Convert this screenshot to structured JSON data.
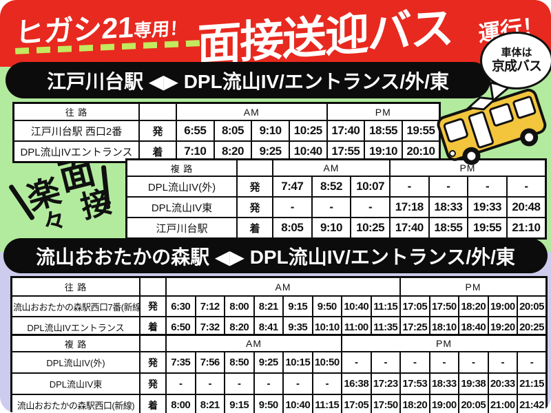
{
  "poster": {
    "header": {
      "kicker": "ヒガシ21",
      "kicker_small": "専用！",
      "title": "面接送迎バス",
      "suffix": "運行！",
      "bubble": {
        "line1": "車体は",
        "line2": "京成バス"
      }
    },
    "decoration": {
      "char1": "楽",
      "char2": "々",
      "char3": "面",
      "char4": "接"
    },
    "section1": {
      "title": "江戸川台駅 ◀▶ DPL流山IV/エントランス/外/東"
    },
    "section2": {
      "title": "流山おおたかの森駅 ◀▶ DPL流山IV/エントランス/外/東"
    }
  },
  "colors": {
    "header_red": "#e8291f",
    "dash_green": "#c3e95e",
    "band_green": "#b2eb9e",
    "band_lavender": "#cdccee",
    "cell_green": "#e6f5b2",
    "cell_tan": "#dcd5a2",
    "bar_black": "#0c0c0c",
    "bus_yellow": "#f2c53d"
  },
  "tables": [
    {
      "direction": "往 路",
      "am": "AM",
      "pm": "PM",
      "am_count": 4,
      "pm_count": 3,
      "rows": [
        {
          "stop": "江戸川台駅 西口2番",
          "mark": "発",
          "style": "green",
          "times": [
            "6:55",
            "8:05",
            "9:10",
            "10:25",
            "17:40",
            "18:55",
            "19:55"
          ]
        },
        {
          "stop": "DPL流山IVエントランス",
          "mark": "着",
          "style": "white",
          "times": [
            "7:10",
            "8:20",
            "9:25",
            "10:40",
            "17:55",
            "19:10",
            "20:10"
          ]
        }
      ]
    },
    {
      "direction": "複 路",
      "am": "AM",
      "pm": "PM",
      "am_count": 3,
      "pm_count": 4,
      "rows": [
        {
          "stop": "DPL流山IV(外)",
          "mark": "発",
          "style": "green",
          "times": [
            "7:47",
            "8:52",
            "10:07",
            "-",
            "-",
            "-",
            "-"
          ]
        },
        {
          "stop": "DPL流山IV東",
          "mark": "発",
          "style": "tan",
          "times": [
            "-",
            "-",
            "-",
            "17:18",
            "18:33",
            "19:33",
            "20:48"
          ]
        },
        {
          "stop": "江戸川台駅",
          "mark": "着",
          "style": "white",
          "times": [
            "8:05",
            "9:10",
            "10:25",
            "17:40",
            "18:55",
            "19:55",
            "21:10"
          ]
        }
      ]
    },
    {
      "direction": "往 路",
      "am": "AM",
      "pm": "PM",
      "am_count": 8,
      "pm_count": 5,
      "rows": [
        {
          "stop": "流山おおたかの森駅西口7番(新線)",
          "mark": "発",
          "style": "green",
          "times": [
            "6:30",
            "7:12",
            "8:00",
            "8:21",
            "9:15",
            "9:50",
            "10:40",
            "11:15",
            "17:05",
            "17:50",
            "18:20",
            "19:00",
            "20:05"
          ]
        },
        {
          "stop": "DPL流山IVエントランス",
          "mark": "着",
          "style": "white",
          "times": [
            "6:50",
            "7:32",
            "8:20",
            "8:41",
            "9:35",
            "10:10",
            "11:00",
            "11:35",
            "17:25",
            "18:10",
            "18:40",
            "19:20",
            "20:25"
          ]
        }
      ]
    },
    {
      "direction": "複 路",
      "am": "AM",
      "pm": "PM",
      "am_count": 6,
      "pm_count": 7,
      "rows": [
        {
          "stop": "DPL流山IV(外)",
          "mark": "発",
          "style": "green",
          "times": [
            "7:35",
            "7:56",
            "8:50",
            "9:25",
            "10:15",
            "10:50",
            "-",
            "-",
            "-",
            "-",
            "-",
            "-",
            "-"
          ]
        },
        {
          "stop": "DPL流山IV東",
          "mark": "発",
          "style": "tan",
          "times": [
            "-",
            "-",
            "-",
            "-",
            "-",
            "-",
            "16:38",
            "17:23",
            "17:53",
            "18:33",
            "19:38",
            "20:33",
            "21:15"
          ]
        },
        {
          "stop": "流山おおたかの森駅西口(新線)",
          "mark": "着",
          "style": "white",
          "times": [
            "8:00",
            "8:21",
            "9:15",
            "9:50",
            "10:40",
            "11:15",
            "17:05",
            "17:50",
            "18:20",
            "19:00",
            "20:05",
            "21:00",
            "21:42"
          ]
        }
      ]
    }
  ]
}
